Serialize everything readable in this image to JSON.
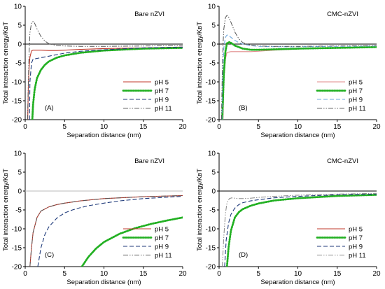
{
  "chart_data": [
    {
      "type": "line",
      "panel_label": "(A)",
      "corner_label": "Bare nZVI",
      "xlabel": "Separation distance (nm)",
      "ylabel": "Total interaction energy/KʙT",
      "xlim": [
        0,
        20
      ],
      "ylim": [
        -20,
        10
      ],
      "xticks": [
        0,
        5,
        10,
        15,
        20
      ],
      "yticks": [
        -20,
        -15,
        -10,
        -5,
        0,
        5,
        10
      ],
      "legend_position": "bottom-right",
      "series": [
        {
          "name": "pH 5",
          "color": "#c0392b",
          "style": "solid",
          "x": [
            0.32,
            0.4,
            0.5,
            0.6,
            0.8,
            1.0,
            1.5,
            2.0,
            3.0,
            4.0,
            5.0,
            7.0,
            10,
            15,
            20
          ],
          "y": [
            -20,
            -11,
            -6,
            -3.5,
            -1.8,
            -1.6,
            -1.6,
            -1.6,
            -1.7,
            -1.7,
            -1.6,
            -1.4,
            -1.2,
            -1.0,
            -0.8
          ]
        },
        {
          "name": "pH 7",
          "color": "#22b022",
          "style": "dotted",
          "x": [
            0.9,
            1.0,
            1.2,
            1.5,
            2.0,
            2.5,
            3.0,
            4.0,
            5.0,
            7.0,
            10,
            15,
            20
          ],
          "y": [
            -20,
            -16,
            -12,
            -9,
            -6.8,
            -5.5,
            -4.6,
            -3.6,
            -3.0,
            -2.3,
            -1.7,
            -1.2,
            -1.0
          ]
        },
        {
          "name": "pH 9",
          "color": "#1f3a7a",
          "style": "dashed",
          "x": [
            0.55,
            0.6,
            0.8,
            1.0,
            1.5,
            2.0,
            3.0,
            4.0,
            5.0,
            7.0,
            10,
            15,
            20
          ],
          "y": [
            -20,
            -10,
            -5.0,
            -4.0,
            -3.8,
            -3.6,
            -3.2,
            -2.8,
            -2.4,
            -1.9,
            -1.5,
            -1.0,
            -0.8
          ]
        },
        {
          "name": "pH 11",
          "color": "#555555",
          "style": "dashdot",
          "x": [
            0.3,
            0.4,
            0.5,
            0.6,
            0.8,
            1.0,
            1.2,
            1.5,
            2.0,
            2.5,
            3.0,
            4.0,
            5.0,
            7.0,
            10,
            15,
            20
          ],
          "y": [
            -20,
            -10,
            -2,
            3,
            5.6,
            6.0,
            5.5,
            4.0,
            2.0,
            0.8,
            0.1,
            -0.4,
            -0.5,
            -0.6,
            -0.6,
            -0.5,
            -0.4
          ]
        }
      ]
    },
    {
      "type": "line",
      "panel_label": "(B)",
      "corner_label": "CMC-nZVI",
      "xlabel": "Separation distance (nm)",
      "ylabel": "Total interaction energy/KʙT",
      "xlim": [
        0,
        20
      ],
      "ylim": [
        -20,
        10
      ],
      "xticks": [
        0,
        5,
        10,
        15,
        20
      ],
      "yticks": [
        -20,
        -15,
        -10,
        -5,
        0,
        5,
        10
      ],
      "legend_position": "bottom-right",
      "series": [
        {
          "name": "pH 5",
          "color": "#e08a8a",
          "style": "solid",
          "x": [
            0.5,
            0.6,
            0.8,
            1.0,
            1.5,
            2.0,
            3.0,
            4.0,
            5.0,
            7.0,
            10,
            15,
            20
          ],
          "y": [
            -20,
            -10,
            -4,
            -2.2,
            -2.0,
            -2.0,
            -2.0,
            -2.0,
            -1.9,
            -1.6,
            -1.3,
            -1.0,
            -0.8
          ]
        },
        {
          "name": "pH 7",
          "color": "#22b022",
          "style": "dotted",
          "x": [
            0.4,
            0.5,
            0.6,
            0.8,
            1.0,
            1.3,
            1.6,
            2.0,
            3.0,
            4.0,
            5.0,
            7.0,
            10,
            15,
            20
          ],
          "y": [
            -20,
            -14,
            -8,
            -2,
            0.2,
            0.5,
            0.2,
            -0.4,
            -1.2,
            -1.5,
            -1.5,
            -1.4,
            -1.2,
            -1.0,
            -0.8
          ]
        },
        {
          "name": "pH 9",
          "color": "#6fa8dc",
          "style": "dashed",
          "x": [
            0.35,
            0.45,
            0.6,
            0.8,
            1.0,
            1.2,
            1.5,
            2.0,
            2.5,
            3.0,
            4.0,
            5.0,
            7.0,
            10,
            15,
            20
          ],
          "y": [
            -20,
            -8,
            -1,
            1.8,
            2.4,
            2.3,
            1.8,
            1.0,
            0.4,
            0.0,
            -0.4,
            -0.6,
            -0.7,
            -0.7,
            -0.6,
            -0.5
          ]
        },
        {
          "name": "pH 11",
          "color": "#555555",
          "style": "dashdot",
          "x": [
            0.3,
            0.4,
            0.5,
            0.6,
            0.8,
            1.0,
            1.2,
            1.5,
            2.0,
            2.5,
            3.0,
            4.0,
            5.0,
            7.0,
            10,
            15,
            20
          ],
          "y": [
            -20,
            -8,
            0,
            4,
            7.0,
            7.6,
            7.2,
            5.8,
            3.2,
            1.4,
            0.4,
            -0.3,
            -0.5,
            -0.6,
            -0.6,
            -0.5,
            -0.4
          ]
        }
      ]
    },
    {
      "type": "line",
      "panel_label": "(C)",
      "corner_label": "Bare nZVI",
      "xlabel": "Separation distance (nm)",
      "ylabel": "Total interaction energy/KʙT",
      "xlim": [
        0,
        20
      ],
      "ylim": [
        -20,
        10
      ],
      "xticks": [
        0,
        5,
        10,
        15,
        20
      ],
      "yticks": [
        -20,
        -15,
        -10,
        -5,
        0,
        5,
        10
      ],
      "legend_position": "bottom-right",
      "series": [
        {
          "name": "pH 5",
          "color": "#c0392b",
          "style": "solid",
          "x": [
            0.6,
            0.8,
            1.0,
            1.5,
            2.0,
            3.0,
            4.0,
            5.0,
            7.0,
            10,
            15,
            20
          ],
          "y": [
            -20,
            -15,
            -11,
            -7.0,
            -5.3,
            -4.2,
            -3.6,
            -3.2,
            -2.6,
            -2.0,
            -1.5,
            -1.2
          ]
        },
        {
          "name": "pH 7",
          "color": "#22b022",
          "style": "dotted",
          "x": [
            7.2,
            8.0,
            9.0,
            10,
            12,
            14,
            16,
            18,
            20
          ],
          "y": [
            -20,
            -17.5,
            -15.2,
            -13.5,
            -11.3,
            -9.8,
            -8.7,
            -7.8,
            -7.0
          ]
        },
        {
          "name": "pH 9",
          "color": "#1f3a7a",
          "style": "dashed",
          "x": [
            1.6,
            2.0,
            2.5,
            3.0,
            4.0,
            5.0,
            6.0,
            7.0,
            8.0,
            10,
            12,
            15,
            20
          ],
          "y": [
            -20,
            -15,
            -11.5,
            -9.5,
            -7.2,
            -5.8,
            -5.0,
            -4.4,
            -3.9,
            -3.2,
            -2.6,
            -2.0,
            -1.4
          ]
        },
        {
          "name": "pH 11",
          "color": "#555555",
          "style": "dashdot",
          "x": [
            0.6,
            0.8,
            1.0,
            1.5,
            2.0,
            3.0,
            4.0,
            5.0,
            7.0,
            10,
            15,
            20
          ],
          "y": [
            -20,
            -15,
            -11,
            -7.0,
            -5.3,
            -4.2,
            -3.6,
            -3.2,
            -2.6,
            -2.0,
            -1.5,
            -1.2
          ]
        }
      ]
    },
    {
      "type": "line",
      "panel_label": "(D)",
      "corner_label": "CMC-nZVI",
      "xlabel": "Separation distance (nm)",
      "ylabel": "Total interaction energy/KʙT",
      "xlim": [
        0,
        20
      ],
      "ylim": [
        -20,
        10
      ],
      "xticks": [
        0,
        5,
        10,
        15,
        20
      ],
      "yticks": [
        -20,
        -15,
        -10,
        -5,
        0,
        5,
        10
      ],
      "legend_position": "bottom-right",
      "series": [
        {
          "name": "pH 5",
          "color": "#c0392b",
          "style": "solid",
          "x": [
            1.0,
            1.2,
            1.5,
            2.0,
            2.5,
            3.0,
            4.0,
            5.0,
            7.0,
            10,
            15,
            20
          ],
          "y": [
            -20,
            -15,
            -10.5,
            -7.0,
            -5.6,
            -4.8,
            -3.9,
            -3.3,
            -2.5,
            -1.9,
            -1.3,
            -1.0
          ]
        },
        {
          "name": "pH 7",
          "color": "#22b022",
          "style": "dotted",
          "x": [
            1.0,
            1.2,
            1.5,
            2.0,
            2.5,
            3.0,
            4.0,
            5.0,
            7.0,
            10,
            15,
            20
          ],
          "y": [
            -20,
            -15,
            -10.5,
            -7.0,
            -5.6,
            -4.8,
            -3.9,
            -3.3,
            -2.5,
            -1.9,
            -1.3,
            -1.0
          ]
        },
        {
          "name": "pH 9",
          "color": "#1f3a7a",
          "style": "dashed",
          "x": [
            0.7,
            0.9,
            1.2,
            1.5,
            2.0,
            2.5,
            3.0,
            4.0,
            5.0,
            7.0,
            10,
            15,
            20
          ],
          "y": [
            -20,
            -13,
            -8.5,
            -6.2,
            -4.5,
            -3.6,
            -3.1,
            -2.6,
            -2.3,
            -1.8,
            -1.4,
            -1.0,
            -0.8
          ]
        },
        {
          "name": "pH 11",
          "color": "#888888",
          "style": "dashdot",
          "x": [
            0.4,
            0.6,
            0.8,
            1.0,
            1.3,
            1.6,
            2.0,
            2.5,
            3.0,
            4.0,
            5.0,
            7.0,
            10,
            15,
            20
          ],
          "y": [
            -20,
            -12,
            -6,
            -3.2,
            -2.0,
            -1.8,
            -1.9,
            -2.0,
            -2.0,
            -1.9,
            -1.7,
            -1.4,
            -1.1,
            -0.8,
            -0.6
          ]
        }
      ]
    }
  ]
}
